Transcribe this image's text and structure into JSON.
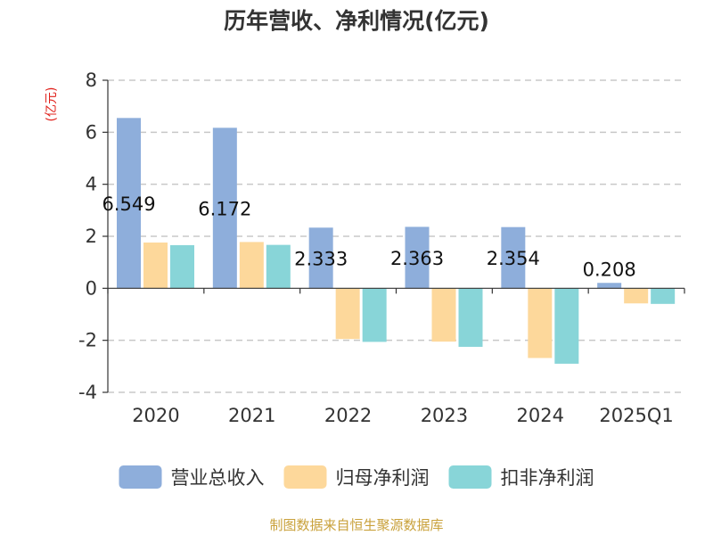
{
  "chart_data": {
    "type": "bar",
    "title": "历年营收、净利情况(亿元)",
    "ylabel": "(亿元)",
    "xlabel": "",
    "categories": [
      "2020",
      "2021",
      "2022",
      "2023",
      "2024",
      "2025Q1"
    ],
    "ylim": [
      -4,
      8
    ],
    "yticks": [
      -4,
      -2,
      0,
      2,
      4,
      6,
      8
    ],
    "grid": true,
    "legend_position": "bottom",
    "series": [
      {
        "name": "营业总收入",
        "color": "#8eaedb",
        "values": [
          6.549,
          6.172,
          2.333,
          2.363,
          2.354,
          0.208
        ],
        "labels": [
          "6.549",
          "6.172",
          "2.333",
          "2.363",
          "2.354",
          "0.208"
        ]
      },
      {
        "name": "归母净利润",
        "color": "#fdd89b",
        "values": [
          1.76,
          1.78,
          -1.95,
          -2.05,
          -2.68,
          -0.58
        ]
      },
      {
        "name": "扣非净利润",
        "color": "#88d5d8",
        "values": [
          1.66,
          1.67,
          -2.06,
          -2.25,
          -2.9,
          -0.6
        ]
      }
    ]
  },
  "source": "制图数据来自恒生聚源数据库"
}
